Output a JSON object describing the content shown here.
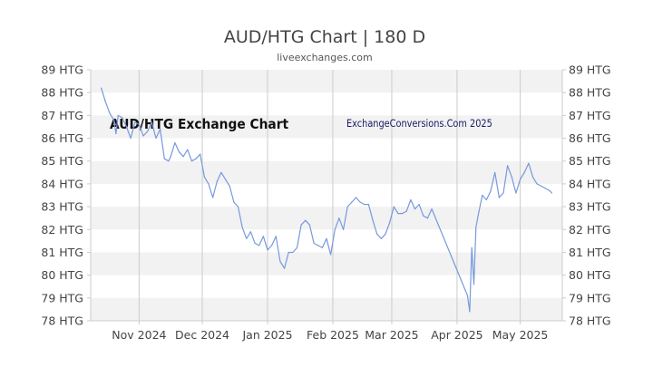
{
  "colors": {
    "line": "#7799dd",
    "band": "#f2f2f2",
    "grid": "#cccccc",
    "text": "#444444",
    "watermark_left": "#111111",
    "watermark_right": "#1a1a66"
  },
  "chart_data": {
    "type": "line",
    "title": "AUD/HTG Chart | 180 D",
    "subtitle": "liveexchanges.com",
    "overlay_left": "AUD/HTG Exchange Chart",
    "overlay_right": "ExchangeConversions.Com 2025",
    "xlabel": "",
    "ylabel": "",
    "ylim": [
      78,
      89
    ],
    "yticks": [
      {
        "value": 89,
        "label": "89 HTG"
      },
      {
        "value": 88,
        "label": "88 HTG"
      },
      {
        "value": 87,
        "label": "87 HTG"
      },
      {
        "value": 86,
        "label": "86 HTG"
      },
      {
        "value": 85,
        "label": "85 HTG"
      },
      {
        "value": 84,
        "label": "84 HTG"
      },
      {
        "value": 83,
        "label": "83 HTG"
      },
      {
        "value": 82,
        "label": "82 HTG"
      },
      {
        "value": 81,
        "label": "81 HTG"
      },
      {
        "value": 80,
        "label": "80 HTG"
      },
      {
        "value": 79,
        "label": "79 HTG"
      },
      {
        "value": 78,
        "label": "78 HTG"
      }
    ],
    "xlim": [
      "2024-10-09",
      "2025-05-21"
    ],
    "xticks": [
      {
        "date": "2024-11-01",
        "label": "Nov 2024"
      },
      {
        "date": "2024-12-01",
        "label": "Dec 2024"
      },
      {
        "date": "2025-01-01",
        "label": "Jan 2025"
      },
      {
        "date": "2025-02-01",
        "label": "Feb 2025"
      },
      {
        "date": "2025-03-01",
        "label": "Mar 2025"
      },
      {
        "date": "2025-04-01",
        "label": "Apr 2025"
      },
      {
        "date": "2025-05-01",
        "label": "May 2025"
      }
    ],
    "grid": true,
    "series": [
      {
        "x": [
          "2024-10-14",
          "2024-10-16",
          "2024-10-18",
          "2024-10-20",
          "2024-10-21",
          "2024-10-22",
          "2024-10-24",
          "2024-10-26",
          "2024-10-28",
          "2024-10-30",
          "2024-11-01",
          "2024-11-03",
          "2024-11-05",
          "2024-11-07",
          "2024-11-09",
          "2024-11-11",
          "2024-11-13",
          "2024-11-15",
          "2024-11-16",
          "2024-11-18",
          "2024-11-20",
          "2024-11-22",
          "2024-11-24",
          "2024-11-26",
          "2024-11-28",
          "2024-11-30",
          "2024-12-02",
          "2024-12-04",
          "2024-12-06",
          "2024-12-08",
          "2024-12-10",
          "2024-12-12",
          "2024-12-14",
          "2024-12-16",
          "2024-12-18",
          "2024-12-20",
          "2024-12-22",
          "2024-12-24",
          "2024-12-26",
          "2024-12-28",
          "2024-12-30",
          "2025-01-01",
          "2025-01-03",
          "2025-01-05",
          "2025-01-07",
          "2025-01-09",
          "2025-01-11",
          "2025-01-13",
          "2025-01-15",
          "2025-01-17",
          "2025-01-19",
          "2025-01-21",
          "2025-01-23",
          "2025-01-25",
          "2025-01-27",
          "2025-01-29",
          "2025-01-31",
          "2025-02-02",
          "2025-02-04",
          "2025-02-06",
          "2025-02-08",
          "2025-02-10",
          "2025-02-12",
          "2025-02-14",
          "2025-02-16",
          "2025-02-18",
          "2025-02-20",
          "2025-02-22",
          "2025-02-24",
          "2025-02-26",
          "2025-02-28",
          "2025-03-02",
          "2025-03-04",
          "2025-03-06",
          "2025-03-08",
          "2025-03-10",
          "2025-03-12",
          "2025-03-14",
          "2025-03-16",
          "2025-03-18",
          "2025-03-20",
          "2025-04-06",
          "2025-04-07",
          "2025-04-08",
          "2025-04-09",
          "2025-04-10",
          "2025-04-11",
          "2025-04-13",
          "2025-04-15",
          "2025-04-17",
          "2025-04-19",
          "2025-04-21",
          "2025-04-23",
          "2025-04-25",
          "2025-04-27",
          "2025-04-29",
          "2025-05-01",
          "2025-05-03",
          "2025-05-05",
          "2025-05-07",
          "2025-05-09",
          "2025-05-11",
          "2025-05-13",
          "2025-05-15",
          "2025-05-16"
        ],
        "values": [
          88.2,
          87.6,
          87.1,
          86.8,
          86.2,
          87.0,
          86.9,
          86.5,
          86.0,
          86.7,
          86.6,
          86.1,
          86.3,
          86.7,
          86.0,
          86.4,
          85.1,
          85.0,
          85.2,
          85.8,
          85.4,
          85.2,
          85.5,
          85.0,
          85.1,
          85.3,
          84.3,
          84.0,
          83.4,
          84.1,
          84.5,
          84.2,
          83.9,
          83.2,
          83.0,
          82.1,
          81.6,
          81.9,
          81.4,
          81.3,
          81.7,
          81.1,
          81.3,
          81.7,
          80.6,
          80.3,
          81.0,
          81.0,
          81.2,
          82.2,
          82.4,
          82.2,
          81.4,
          81.3,
          81.2,
          81.6,
          80.9,
          82.0,
          82.5,
          82.0,
          83.0,
          83.2,
          83.4,
          83.2,
          83.1,
          83.1,
          82.4,
          81.8,
          81.6,
          81.8,
          82.3,
          83.0,
          82.7,
          82.7,
          82.8,
          83.3,
          82.9,
          83.1,
          82.6,
          82.5,
          82.9,
          79.1,
          78.4,
          81.2,
          79.6,
          82.1,
          82.6,
          83.5,
          83.3,
          83.7,
          84.5,
          83.4,
          83.6,
          84.8,
          84.3,
          83.6,
          84.2,
          84.5,
          84.9,
          84.3,
          84.0,
          83.9,
          83.8,
          83.7,
          83.6
        ]
      }
    ]
  }
}
